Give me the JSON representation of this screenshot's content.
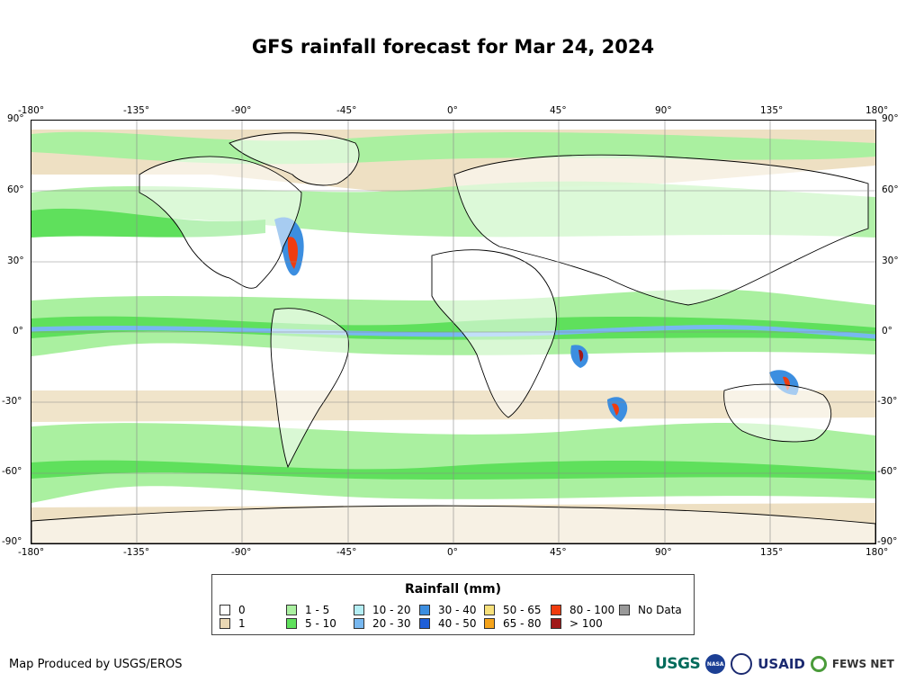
{
  "title": "GFS rainfall forecast for Mar 24, 2024",
  "axes": {
    "lon_labels": [
      "-180°",
      "-135°",
      "-90°",
      "-45°",
      "0°",
      "45°",
      "90°",
      "135°",
      "180°"
    ],
    "lat_labels": [
      "90°",
      "60°",
      "30°",
      "0°",
      "-30°",
      "-60°",
      "-90°"
    ]
  },
  "legend": {
    "title": "Rainfall (mm)",
    "items": [
      {
        "label": "0",
        "color": "#ffffff"
      },
      {
        "label": "1",
        "color": "#ead8b4"
      },
      {
        "label": "1 - 5",
        "color": "#aaf0a0"
      },
      {
        "label": "5 - 10",
        "color": "#5fe05c"
      },
      {
        "label": "10 - 20",
        "color": "#b4eef4"
      },
      {
        "label": "20 - 30",
        "color": "#78b8f0"
      },
      {
        "label": "30 - 40",
        "color": "#3c8ee0"
      },
      {
        "label": "40 - 50",
        "color": "#1e5ed8"
      },
      {
        "label": "50 - 65",
        "color": "#f7e07a"
      },
      {
        "label": "65 - 80",
        "color": "#f5a31a"
      },
      {
        "label": "80 - 100",
        "color": "#f03c0f"
      },
      {
        "label": "> 100",
        "color": "#a01818"
      },
      {
        "label": "No Data",
        "color": "#999999"
      }
    ]
  },
  "footer": {
    "credit": "Map Produced by USGS/EROS",
    "logos": {
      "usgs": "USGS",
      "nasa": "NASA",
      "usaid": "USAID",
      "fews": "FEWS NET"
    }
  }
}
